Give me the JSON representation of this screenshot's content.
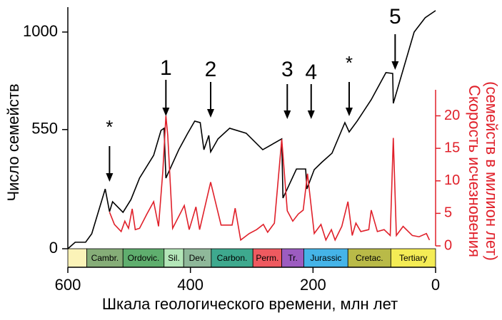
{
  "chart_data": {
    "type": "line",
    "xlabel": "Шкала геологического времени, млн лет",
    "ylabel": "Число семейств",
    "y2label": [
      "Скорость исчезновения",
      "(семейств в милион лет)"
    ],
    "xlim": [
      600,
      0
    ],
    "xticks": [
      600,
      400,
      200,
      0
    ],
    "ylim": [
      0,
      1115
    ],
    "yticks": [
      0,
      550,
      1000
    ],
    "y2lim": [
      0,
      24
    ],
    "y2ticks": [
      0,
      5,
      10,
      15,
      20
    ],
    "series": [
      {
        "name": "Число семейств",
        "color": "#000000",
        "x": [
          600,
          588,
          571,
          561,
          539,
          532,
          527,
          510,
          497,
          483,
          460,
          448,
          443,
          440,
          419,
          405,
          393,
          384,
          378,
          370,
          367,
          355,
          336,
          309,
          282,
          251,
          249,
          242,
          227,
          212,
          210,
          198,
          186,
          169,
          148,
          141,
          128,
          105,
          81,
          70,
          69,
          35,
          17,
          0
        ],
        "values": [
          0,
          30,
          30,
          69,
          276,
          171,
          217,
          168,
          227,
          326,
          431,
          546,
          556,
          326,
          457,
          530,
          589,
          582,
          457,
          523,
          447,
          507,
          556,
          533,
          457,
          507,
          234,
          276,
          368,
          368,
          276,
          365,
          398,
          441,
          582,
          539,
          589,
          688,
          813,
          809,
          671,
          1000,
          1066,
          1099
        ]
      },
      {
        "name": "Скорость исчезновения",
        "color": "#e0202a",
        "axis": "y2",
        "x": [
          532,
          524,
          513,
          507,
          501,
          495,
          490,
          483,
          471,
          460,
          452,
          445,
          440,
          437,
          429,
          410,
          402,
          391,
          385,
          367,
          350,
          332,
          327,
          318,
          304,
          292,
          281,
          274,
          263,
          251,
          242,
          233,
          224,
          216,
          209,
          198,
          187,
          179,
          170,
          164,
          153,
          143,
          136,
          130,
          122,
          109,
          105,
          95,
          84,
          74,
          69,
          64,
          53,
          38,
          27,
          15,
          10
        ],
        "values": [
          5.2,
          3.3,
          2.2,
          3.8,
          2.7,
          5.7,
          2.5,
          2.7,
          4.9,
          6.8,
          3.0,
          11.5,
          20,
          17,
          2.7,
          6.2,
          2.5,
          6.0,
          2.5,
          9.8,
          3.2,
          3.2,
          5.8,
          0.9,
          1.9,
          2.5,
          3.3,
          2.1,
          3.5,
          16.4,
          5.4,
          3.8,
          4.9,
          5.5,
          11.1,
          1.9,
          3.3,
          0.9,
          2.5,
          0.9,
          3.0,
          6.8,
          1.6,
          3.5,
          2.2,
          2.5,
          5.5,
          2.2,
          2.5,
          1.6,
          16.6,
          1.6,
          3.0,
          1.6,
          1.4,
          1.9,
          0.9
        ]
      }
    ],
    "annotations": [
      {
        "text": "*",
        "x": 532
      },
      {
        "text": "1",
        "x": 440
      },
      {
        "text": "2",
        "x": 367
      },
      {
        "text": "3",
        "x": 242
      },
      {
        "text": "4",
        "x": 203
      },
      {
        "text": "*",
        "x": 141
      },
      {
        "text": "5",
        "x": 66
      }
    ],
    "period_boundaries": [
      600,
      569,
      510,
      443,
      411,
      366,
      298,
      251,
      215,
      143,
      73,
      0
    ],
    "periods": [
      {
        "name": null,
        "color": "#fbf3b8"
      },
      {
        "name": "Cambr.",
        "color": "#86ad78"
      },
      {
        "name": "Ordovic.",
        "color": "#5fae6e"
      },
      {
        "name": "Sil.",
        "color": "#b3e6b8"
      },
      {
        "name": "Dev.",
        "color": "#8fb89a"
      },
      {
        "name": "Carbon.",
        "color": "#3ea98e"
      },
      {
        "name": "Perm.",
        "color": "#ee5a60"
      },
      {
        "name": "Tr.",
        "color": "#9c5cc0"
      },
      {
        "name": "Jurassic",
        "color": "#45b4e8"
      },
      {
        "name": "Cretac.",
        "color": "#b9ba48"
      },
      {
        "name": "Tertiary",
        "color": "#f4ec55"
      }
    ]
  }
}
